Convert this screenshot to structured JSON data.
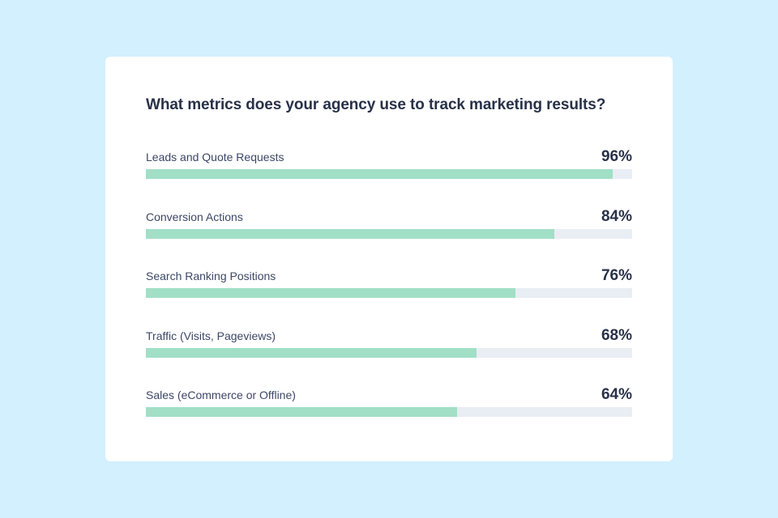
{
  "chart_data": {
    "type": "bar",
    "orientation": "horizontal",
    "title": "What metrics does your agency use to track marketing results?",
    "categories": [
      "Leads and Quote Requests",
      "Conversion Actions",
      "Search Ranking Positions",
      "Traffic (Visits, Pageviews)",
      "Sales (eCommerce or Offline)"
    ],
    "values": [
      96,
      84,
      76,
      68,
      64
    ],
    "value_labels": [
      "96%",
      "84%",
      "76%",
      "68%",
      "64%"
    ],
    "xlim": [
      0,
      100
    ],
    "unit": "%",
    "grid": false,
    "legend": "none"
  },
  "colors": {
    "background": "#d3f0fe",
    "card": "#ffffff",
    "bar_fill": "#a1dfc6",
    "bar_track": "#e9edf4",
    "text": "#283149"
  }
}
